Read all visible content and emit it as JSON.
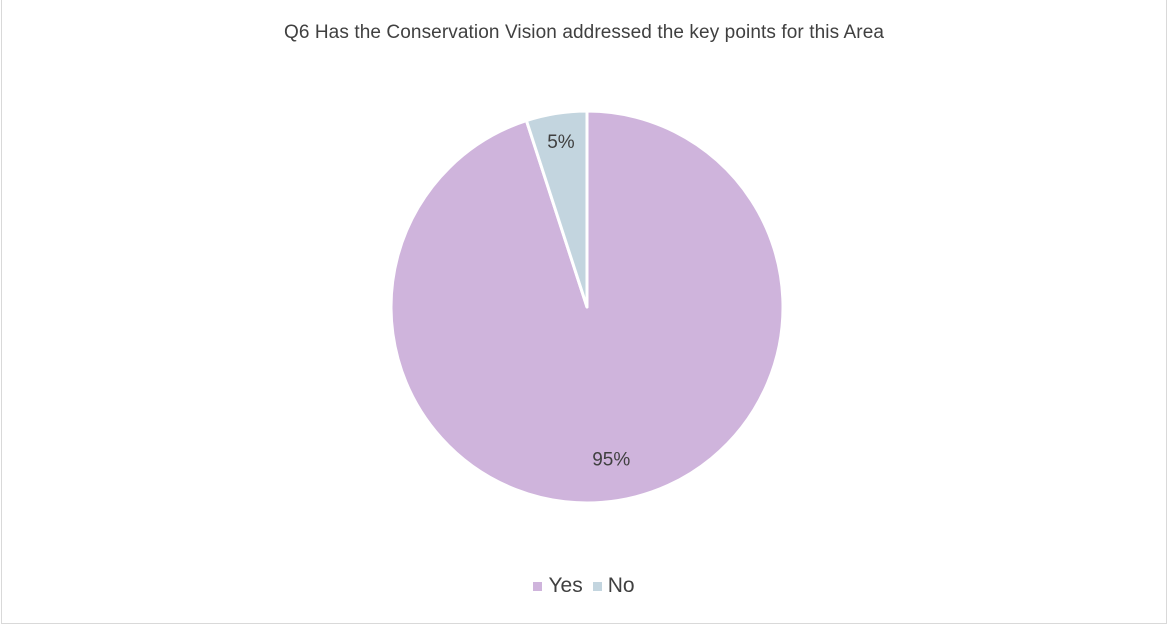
{
  "chart_data": {
    "type": "pie",
    "title": "Q6 Has the Conservation Vision addressed the key points for this Area",
    "categories": [
      "Yes",
      "No"
    ],
    "values": [
      95,
      5
    ],
    "data_labels": [
      "95%",
      "5%"
    ],
    "colors": [
      "#cfb4dc",
      "#c3d5df"
    ],
    "legend_position": "bottom",
    "start_angle_deg": 0,
    "direction": "clockwise",
    "slice_border_color": "#ffffff"
  }
}
